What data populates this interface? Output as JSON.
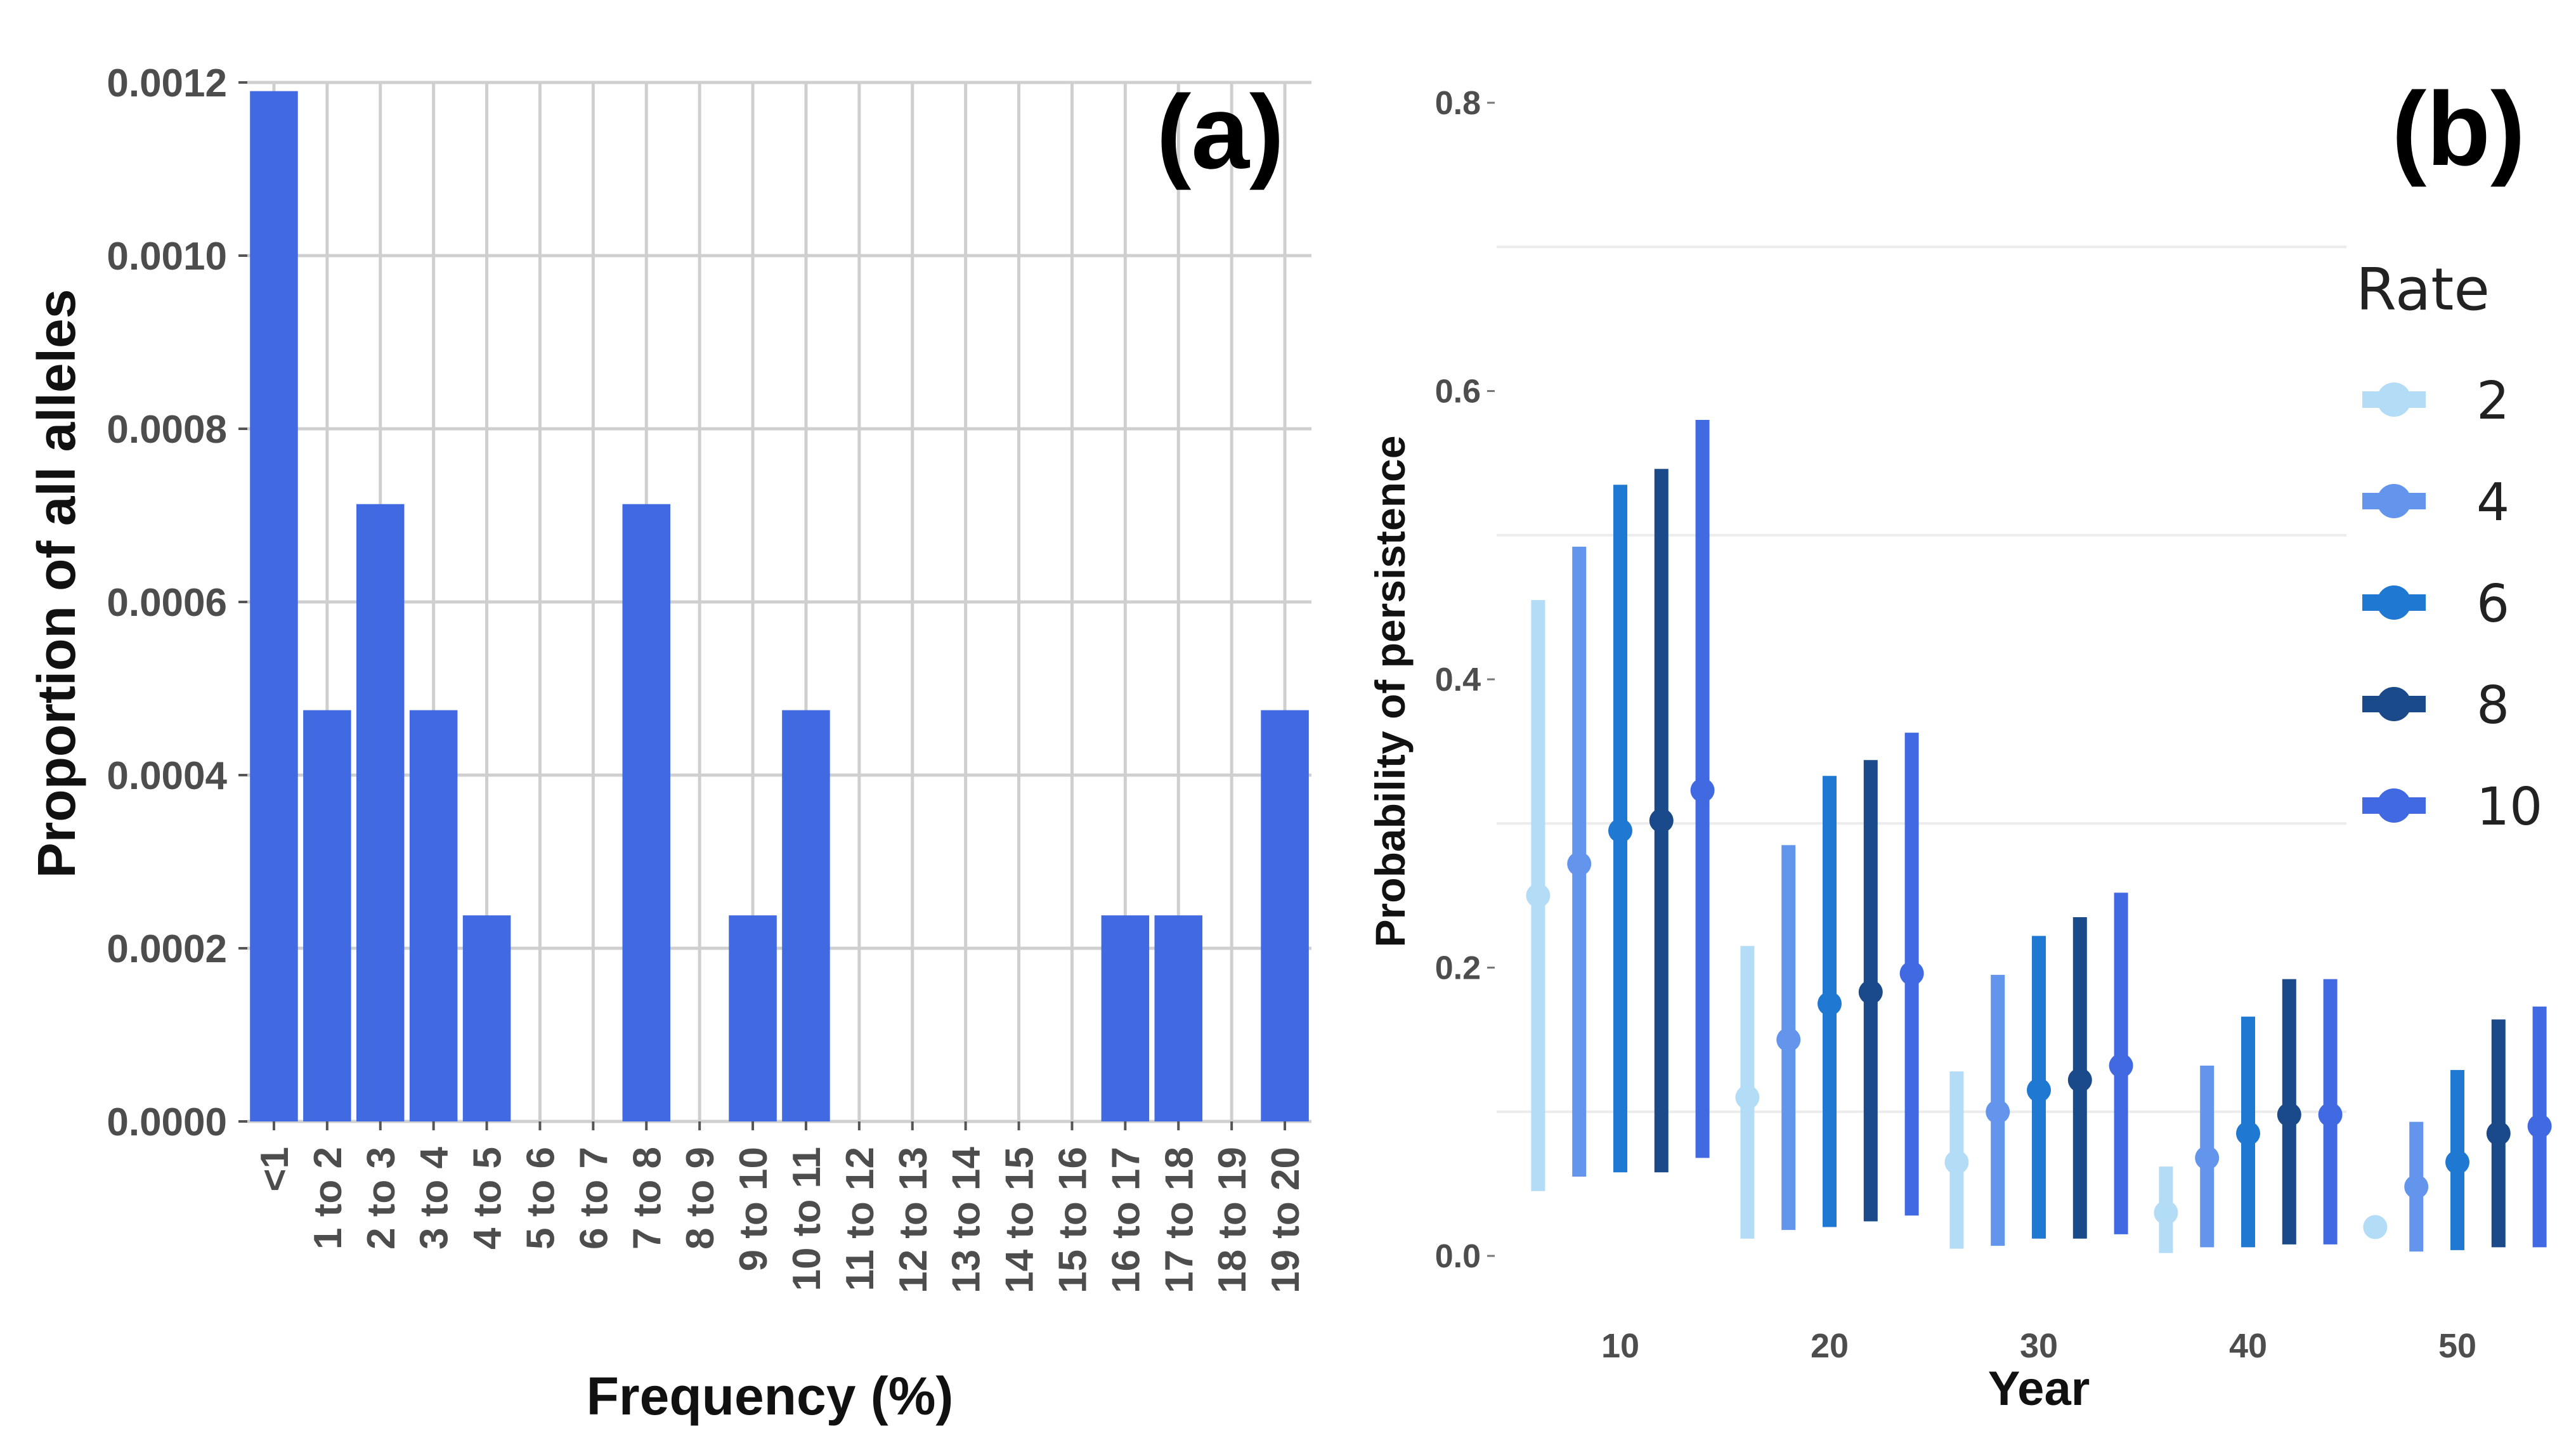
{
  "chart_data": [
    {
      "type": "bar",
      "panel_label": "(a)",
      "xlabel": "Frequency (%)",
      "ylabel": "Proportion of all alleles",
      "ylim": [
        0,
        0.0012
      ],
      "yticks": [
        "0.0000",
        "0.0002",
        "0.0004",
        "0.0006",
        "0.0008",
        "0.0010",
        "0.0012"
      ],
      "categories": [
        "<1",
        "1 to 2",
        "2 to 3",
        "3 to 4",
        "4 to 5",
        "5 to 6",
        "6 to 7",
        "7 to 8",
        "8 to 9",
        "9 to 10",
        "10 to 11",
        "11 to 12",
        "12 to 13",
        "13 to 14",
        "14 to 15",
        "15 to 16",
        "16 to 17",
        "17 to 18",
        "18 to 19",
        "19 to 20"
      ],
      "values": [
        0.00119,
        0.000475,
        0.000713,
        0.000475,
        0.000238,
        0,
        0,
        0.000713,
        0,
        0.000238,
        0.000475,
        0,
        0,
        0,
        0,
        0,
        0.000238,
        0.000238,
        0,
        0.000475
      ],
      "bar_color": "#4169e1",
      "grid": true
    },
    {
      "type": "errorbar",
      "panel_label": "(b)",
      "xlabel": "Year",
      "ylabel": "Probability of persistence",
      "ylim": [
        0,
        0.8
      ],
      "yticks": [
        "0.0",
        "0.2",
        "0.4",
        "0.6",
        "0.8"
      ],
      "categories": [
        "10",
        "20",
        "30",
        "40",
        "50"
      ],
      "legend_title": "Rate",
      "legend_position": "right",
      "series": [
        {
          "name": "2",
          "color": "#b3dcf7",
          "mean": [
            0.25,
            0.11,
            0.065,
            0.03,
            0.02
          ],
          "lower": [
            0.045,
            0.012,
            0.005,
            0.002,
            0.02
          ],
          "upper": [
            0.455,
            0.215,
            0.128,
            0.062,
            0.02
          ]
        },
        {
          "name": "4",
          "color": "#6495ed",
          "mean": [
            0.272,
            0.15,
            0.1,
            0.068,
            0.048
          ],
          "lower": [
            0.055,
            0.018,
            0.007,
            0.006,
            0.003
          ],
          "upper": [
            0.492,
            0.285,
            0.195,
            0.132,
            0.093
          ]
        },
        {
          "name": "6",
          "color": "#1f78d1",
          "mean": [
            0.295,
            0.175,
            0.115,
            0.085,
            0.065
          ],
          "lower": [
            0.058,
            0.02,
            0.012,
            0.006,
            0.004
          ],
          "upper": [
            0.535,
            0.333,
            0.222,
            0.166,
            0.129
          ]
        },
        {
          "name": "8",
          "color": "#1a4a8a",
          "mean": [
            0.302,
            0.183,
            0.122,
            0.098,
            0.085
          ],
          "lower": [
            0.058,
            0.024,
            0.012,
            0.008,
            0.006
          ],
          "upper": [
            0.546,
            0.344,
            0.235,
            0.192,
            0.164
          ]
        },
        {
          "name": "10",
          "color": "#4169e1",
          "mean": [
            0.323,
            0.196,
            0.132,
            0.098,
            0.09
          ],
          "lower": [
            0.068,
            0.028,
            0.015,
            0.008,
            0.006
          ],
          "upper": [
            0.58,
            0.363,
            0.252,
            0.192,
            0.173
          ]
        }
      ]
    }
  ]
}
